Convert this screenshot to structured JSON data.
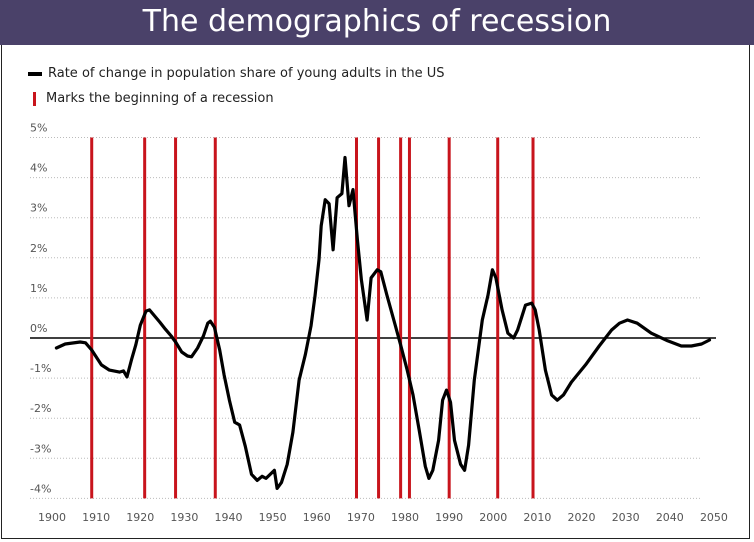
{
  "title": "The demographics of recession",
  "legend": {
    "line_label": "Rate of change in population share of young adults in the US",
    "marker_label": "Marks the beginning of a recession"
  },
  "colors": {
    "header": "#4a4169",
    "series": "#000000",
    "recession": "#c8141c",
    "grid": "#bbbbbb"
  },
  "chart_data": {
    "type": "line",
    "title": "The demographics of recession",
    "xlim": [
      1900,
      2050
    ],
    "ylim": [
      -4,
      5
    ],
    "grid": true,
    "legend_position": "top-left",
    "x_ticks": [
      "1900",
      "1910",
      "1920",
      "1930",
      "1940",
      "1950",
      "1960",
      "1970",
      "1980",
      "1990",
      "2000",
      "2010",
      "2020",
      "2030",
      "2040",
      "2050"
    ],
    "y_ticks": [
      {
        "value": 5,
        "label": "5%"
      },
      {
        "value": 4,
        "label": "4%"
      },
      {
        "value": 3,
        "label": "3%"
      },
      {
        "value": 2,
        "label": "2%"
      },
      {
        "value": 1,
        "label": "1%"
      },
      {
        "value": 0,
        "label": "0%"
      },
      {
        "value": -1,
        "label": "-1%"
      },
      {
        "value": -2,
        "label": "-2%"
      },
      {
        "value": -3,
        "label": "-3%"
      },
      {
        "value": -4,
        "label": "-4%"
      }
    ],
    "series": [
      {
        "name": "Rate of change in population share of young adults in the US",
        "points": [
          [
            1901,
            -0.25
          ],
          [
            1903,
            -0.15
          ],
          [
            1906.4,
            -0.1
          ],
          [
            1907.6,
            -0.12
          ],
          [
            1909,
            -0.3
          ],
          [
            1911.2,
            -0.67
          ],
          [
            1913,
            -0.8
          ],
          [
            1915.3,
            -0.85
          ],
          [
            1916.2,
            -0.82
          ],
          [
            1917,
            -0.97
          ],
          [
            1918,
            -0.55
          ],
          [
            1919,
            -0.17
          ],
          [
            1920,
            0.32
          ],
          [
            1921.3,
            0.67
          ],
          [
            1922.1,
            0.7
          ],
          [
            1924.4,
            0.4
          ],
          [
            1925.7,
            0.22
          ],
          [
            1927,
            0.05
          ],
          [
            1928,
            -0.1
          ],
          [
            1929.4,
            -0.35
          ],
          [
            1930.7,
            -0.45
          ],
          [
            1931.6,
            -0.47
          ],
          [
            1933,
            -0.25
          ],
          [
            1934.3,
            0.05
          ],
          [
            1935.3,
            0.37
          ],
          [
            1935.9,
            0.42
          ],
          [
            1936.8,
            0.27
          ],
          [
            1938,
            -0.3
          ],
          [
            1939,
            -0.92
          ],
          [
            1940.2,
            -1.55
          ],
          [
            1941.4,
            -2.1
          ],
          [
            1942.5,
            -2.17
          ],
          [
            1943.8,
            -2.7
          ],
          [
            1945.2,
            -3.4
          ],
          [
            1946.5,
            -3.55
          ],
          [
            1947.6,
            -3.45
          ],
          [
            1948.5,
            -3.5
          ],
          [
            1950.4,
            -3.3
          ],
          [
            1951,
            -3.75
          ],
          [
            1952,
            -3.6
          ],
          [
            1953.3,
            -3.15
          ],
          [
            1954.6,
            -2.35
          ],
          [
            1956,
            -1.05
          ],
          [
            1957.4,
            -0.42
          ],
          [
            1958.7,
            0.3
          ],
          [
            1959.6,
            1.05
          ],
          [
            1960.5,
            1.95
          ],
          [
            1961,
            2.8
          ],
          [
            1961.9,
            3.45
          ],
          [
            1962.8,
            3.35
          ],
          [
            1963.7,
            2.2
          ],
          [
            1964.6,
            3.5
          ],
          [
            1965.7,
            3.6
          ],
          [
            1966.4,
            4.5
          ],
          [
            1967.3,
            3.3
          ],
          [
            1968.2,
            3.7
          ],
          [
            1969.2,
            2.45
          ],
          [
            1970.1,
            1.45
          ],
          [
            1971.4,
            0.45
          ],
          [
            1972.3,
            1.5
          ],
          [
            1973.7,
            1.7
          ],
          [
            1974.5,
            1.65
          ],
          [
            1975.9,
            1.07
          ],
          [
            1977.7,
            0.35
          ],
          [
            1979,
            -0.17
          ],
          [
            1980.5,
            -0.8
          ],
          [
            1981.8,
            -1.42
          ],
          [
            1983.2,
            -2.3
          ],
          [
            1984.6,
            -3.2
          ],
          [
            1985.4,
            -3.5
          ],
          [
            1986.3,
            -3.3
          ],
          [
            1987.6,
            -2.55
          ],
          [
            1988.5,
            -1.55
          ],
          [
            1989.4,
            -1.3
          ],
          [
            1990.3,
            -1.6
          ],
          [
            1991.2,
            -2.55
          ],
          [
            1992.6,
            -3.15
          ],
          [
            1993.5,
            -3.3
          ],
          [
            1994.4,
            -2.67
          ],
          [
            1995.7,
            -1.05
          ],
          [
            1997.5,
            0.45
          ],
          [
            1998.8,
            1.07
          ],
          [
            1999.8,
            1.7
          ],
          [
            2000.6,
            1.5
          ],
          [
            2002,
            0.7
          ],
          [
            2003.3,
            0.12
          ],
          [
            2004.6,
            0
          ],
          [
            2005.5,
            0.2
          ],
          [
            2007.3,
            0.82
          ],
          [
            2008.7,
            0.87
          ],
          [
            2009.5,
            0.7
          ],
          [
            2010.4,
            0.2
          ],
          [
            2011.8,
            -0.8
          ],
          [
            2013.2,
            -1.42
          ],
          [
            2014.5,
            -1.55
          ],
          [
            2015.9,
            -1.42
          ],
          [
            2017.7,
            -1.1
          ],
          [
            2020.9,
            -0.67
          ],
          [
            2024,
            -0.2
          ],
          [
            2026.8,
            0.2
          ],
          [
            2028.6,
            0.37
          ],
          [
            2030.4,
            0.45
          ],
          [
            2032.6,
            0.37
          ],
          [
            2035.8,
            0.12
          ],
          [
            2039.5,
            -0.07
          ],
          [
            2042.6,
            -0.2
          ],
          [
            2044.9,
            -0.2
          ],
          [
            2047.2,
            -0.15
          ],
          [
            2049,
            -0.05
          ]
        ]
      }
    ],
    "recession_starts": [
      1909,
      1921,
      1928,
      1937,
      1969,
      1974,
      1979,
      1981,
      1990,
      2001,
      2009
    ]
  }
}
